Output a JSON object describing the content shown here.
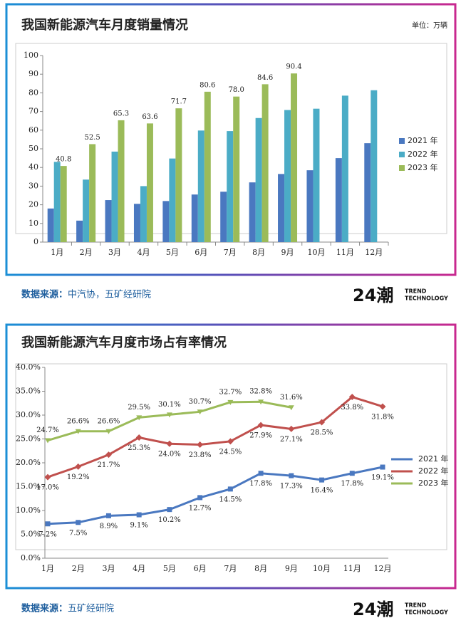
{
  "chart_data": [
    {
      "type": "bar",
      "title": "我国新能源汽车月度销量情况",
      "unit": "单位：万辆",
      "categories": [
        "1月",
        "2月",
        "3月",
        "4月",
        "5月",
        "6月",
        "7月",
        "8月",
        "9月",
        "10月",
        "11月",
        "12月"
      ],
      "series": [
        {
          "name": "2021 年",
          "color": "#4a78c0",
          "values": [
            18,
            11.5,
            22.5,
            20.5,
            22,
            25.5,
            27,
            32,
            36.5,
            38.5,
            45,
            53
          ]
        },
        {
          "name": "2022 年",
          "color": "#4bacc6",
          "values": [
            43,
            33.5,
            48.5,
            30,
            44.8,
            59.8,
            59.5,
            66.5,
            70.8,
            71.5,
            78.5,
            81.4
          ]
        },
        {
          "name": "2023 年",
          "color": "#9bbb59",
          "values": [
            40.8,
            52.5,
            65.3,
            63.6,
            71.7,
            80.6,
            78.0,
            84.6,
            90.4,
            null,
            null,
            null
          ],
          "value_labels": [
            "40.8",
            "52.5",
            "65.3",
            "63.6",
            "71.7",
            "80.6",
            "78.0",
            "84.6",
            "90.4",
            null,
            null,
            null
          ]
        }
      ],
      "ylim": [
        0,
        100
      ],
      "yticks": [
        0,
        10,
        20,
        30,
        40,
        50,
        60,
        70,
        80,
        90,
        100
      ],
      "legend": "right",
      "source_label": "数据来源：",
      "source": "中汽协，五矿经研院",
      "logo": "24潮",
      "logo_text": [
        "TREND",
        "TECHNOLOGY"
      ]
    },
    {
      "type": "line",
      "title": "我国新能源汽车月度市场占有率情况",
      "categories": [
        "1月",
        "2月",
        "3月",
        "4月",
        "5月",
        "6月",
        "7月",
        "8月",
        "9月",
        "10月",
        "11月",
        "12月"
      ],
      "series": [
        {
          "name": "2021 年",
          "color": "#4a78c0",
          "marker": "square",
          "values": [
            7.2,
            7.5,
            8.9,
            9.1,
            10.2,
            12.7,
            14.5,
            17.8,
            17.3,
            16.4,
            17.8,
            19.1
          ],
          "value_labels": [
            "7.2%",
            "7.5%",
            "8.9%",
            "9.1%",
            "10.2%",
            "12.7%",
            "14.5%",
            "17.8%",
            "17.3%",
            "16.4%",
            "17.8%",
            "19.1%"
          ]
        },
        {
          "name": "2022 年",
          "color": "#c0504d",
          "marker": "diamond",
          "values": [
            17.0,
            19.2,
            21.7,
            25.3,
            24.0,
            23.8,
            24.5,
            27.9,
            27.1,
            28.5,
            33.8,
            31.8
          ],
          "value_labels": [
            "17.0%",
            "19.2%",
            "21.7%",
            "25.3%",
            "24.0%",
            "23.8%",
            "24.5%",
            "27.9%",
            "27.1%",
            "28.5%",
            "33.8%",
            "31.8%"
          ]
        },
        {
          "name": "2023 年",
          "color": "#9bbb59",
          "marker": "triangle",
          "values": [
            24.7,
            26.6,
            26.6,
            29.5,
            30.1,
            30.7,
            32.7,
            32.8,
            31.6,
            null,
            null,
            null
          ],
          "value_labels": [
            "24.7%",
            "26.6%",
            "26.6%",
            "29.5%",
            "30.1%",
            "30.7%",
            "32.7%",
            "32.8%",
            "31.6%",
            null,
            null,
            null
          ]
        }
      ],
      "ylim": [
        0,
        40
      ],
      "yticks": [
        {
          "value": 0,
          "label": "0.0%"
        },
        {
          "value": 5,
          "label": "5.0%"
        },
        {
          "value": 10,
          "label": "10.0%"
        },
        {
          "value": 15,
          "label": "15.0%"
        },
        {
          "value": 20,
          "label": "20.0%"
        },
        {
          "value": 25,
          "label": "25.0%"
        },
        {
          "value": 30,
          "label": "30.0%"
        },
        {
          "value": 35,
          "label": "35.0%"
        },
        {
          "value": 40,
          "label": "40.0%"
        }
      ],
      "legend": "right",
      "source_label": "数据来源：",
      "source": "五矿经研院",
      "logo": "24潮",
      "logo_text": [
        "TREND",
        "TECHNOLOGY"
      ]
    }
  ]
}
